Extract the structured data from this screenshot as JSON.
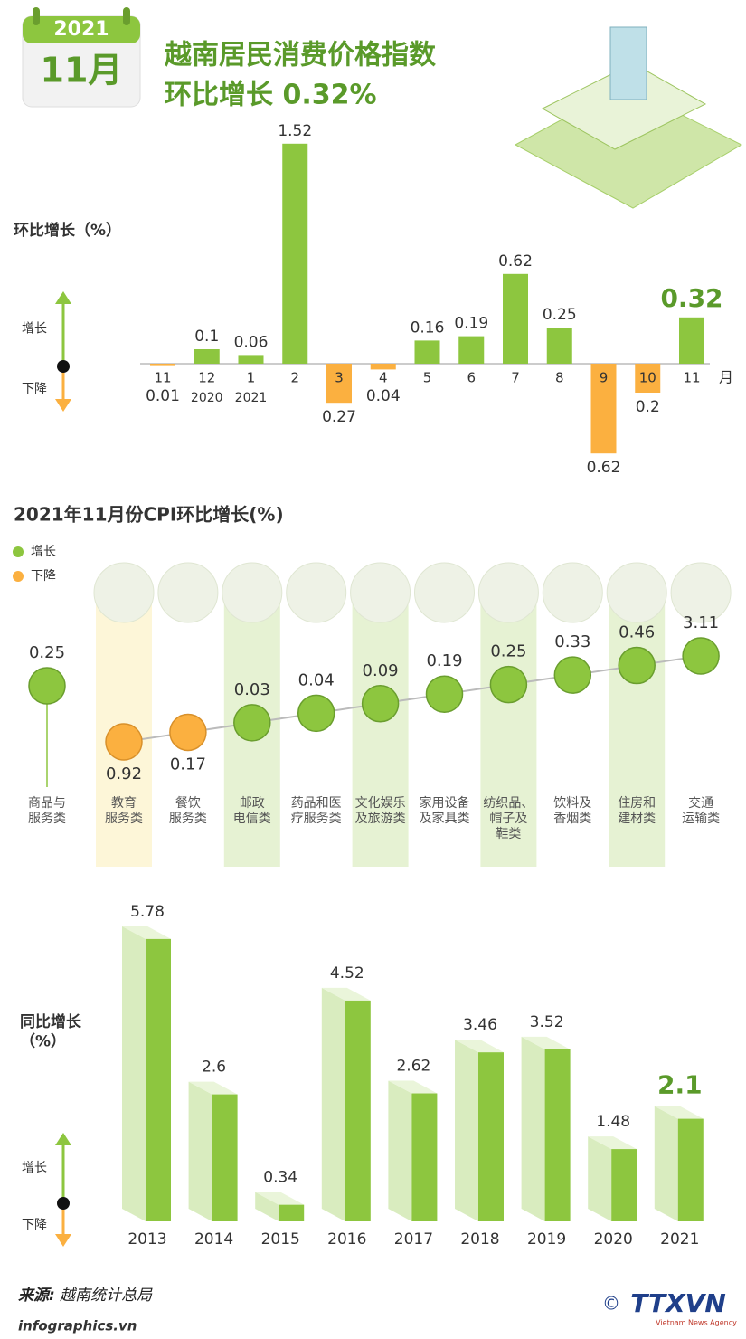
{
  "header": {
    "year": "2021",
    "month": "11月",
    "title_line1": "越南居民消费价格指数",
    "title_line2": "环比增长 0.32%"
  },
  "chart_data": [
    {
      "type": "bar",
      "y_label": "环比增长（%）",
      "x_unit": "月",
      "categories": [
        "11",
        "12",
        "1",
        "2",
        "3",
        "4",
        "5",
        "6",
        "7",
        "8",
        "9",
        "10",
        "11"
      ],
      "year_labels": [
        null,
        "2020",
        "2021",
        null,
        null,
        null,
        null,
        null,
        null,
        null,
        null,
        null,
        null
      ],
      "values": [
        -0.01,
        0.1,
        0.06,
        1.52,
        -0.27,
        -0.04,
        0.16,
        0.19,
        0.62,
        0.25,
        -0.62,
        -0.2,
        0.32
      ],
      "value_labels": [
        "0.01",
        "0.1",
        "0.06",
        "1.52",
        "0.27",
        "0.04",
        "0.16",
        "0.19",
        "0.62",
        "0.25",
        "0.62",
        "0.2",
        "0.32"
      ],
      "colors": {
        "increase": "#8dc63f",
        "decrease": "#fbb040"
      },
      "legend": {
        "increase": "增长",
        "decrease": "下降"
      }
    },
    {
      "type": "dot",
      "title": "2021年11月份CPI环比增长(%)",
      "categories": [
        "商品与\n服务类",
        "教育\n服务类",
        "餐饮\n服务类",
        "邮政\n电信类",
        "药品和医\n疗服务类",
        "文化娱乐\n及旅游类",
        "家用设备\n及家具类",
        "纺织品、\n帽子及\n鞋类",
        "饮料及\n香烟类",
        "住房和\n建材类",
        "交通\n运输类"
      ],
      "values": [
        0.25,
        -0.92,
        -0.17,
        0.03,
        0.04,
        0.09,
        0.19,
        0.25,
        0.33,
        0.46,
        3.11
      ],
      "value_labels": [
        "0.25",
        "0.92",
        "0.17",
        "0.03",
        "0.04",
        "0.09",
        "0.19",
        "0.25",
        "0.33",
        "0.46",
        "3.11"
      ],
      "colors": {
        "increase": "#8dc63f",
        "decrease": "#fbb040"
      },
      "legend": {
        "increase": "增长",
        "decrease": "下降"
      }
    },
    {
      "type": "bar3d",
      "y_label": "同比增长\n（%）",
      "categories": [
        "2013",
        "2014",
        "2015",
        "2016",
        "2017",
        "2018",
        "2019",
        "2020",
        "2021"
      ],
      "values": [
        5.78,
        2.6,
        0.34,
        4.52,
        2.62,
        3.46,
        3.52,
        1.48,
        2.1
      ],
      "colors": {
        "increase": "#8dc63f",
        "decrease": "#fbb040",
        "side": "#d9ecbf"
      },
      "legend": {
        "increase": "增长",
        "decrease": "下降"
      }
    }
  ],
  "footer": {
    "source_label": "来源:",
    "source": "越南统计总局",
    "site": "infographics.vn",
    "copyright": "©",
    "logo": "TTXVN",
    "logo_sub": "Vietnam News Agency"
  }
}
